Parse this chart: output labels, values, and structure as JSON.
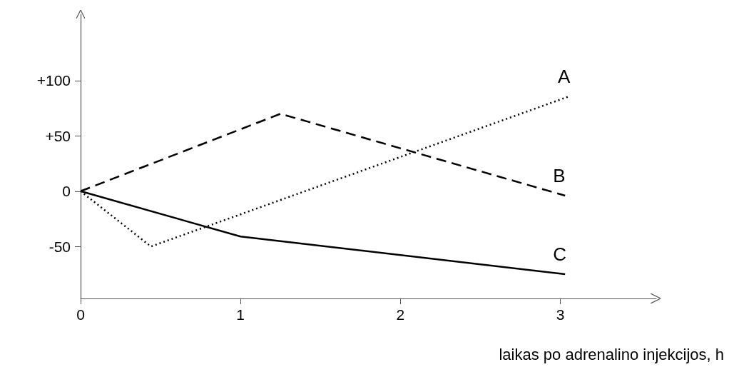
{
  "chart_data": {
    "type": "line",
    "xlabel": "laikas po adrenalino injekcijos, h",
    "xlim": [
      0,
      3.6
    ],
    "ylim": [
      -97,
      160
    ],
    "xticks": [
      0,
      1,
      2,
      3
    ],
    "yticks": [
      {
        "value": 100,
        "label": "+100"
      },
      {
        "value": 50,
        "label": "+50"
      },
      0,
      -50
    ],
    "grid": false,
    "legend": false,
    "marker": "none",
    "series": [
      {
        "name": "A",
        "color": "#000000",
        "line_style": "dotted",
        "x": [
          0,
          0.44,
          3.06
        ],
        "values": [
          0,
          -50,
          86
        ]
      },
      {
        "name": "B",
        "color": "#000000",
        "line_style": "dashed",
        "x": [
          0,
          1.25,
          3.03
        ],
        "values": [
          0,
          70,
          -4
        ]
      },
      {
        "name": "C",
        "color": "#000000",
        "line_style": "solid",
        "x": [
          0,
          1,
          3.03
        ],
        "values": [
          0,
          -41,
          -75
        ]
      }
    ]
  }
}
